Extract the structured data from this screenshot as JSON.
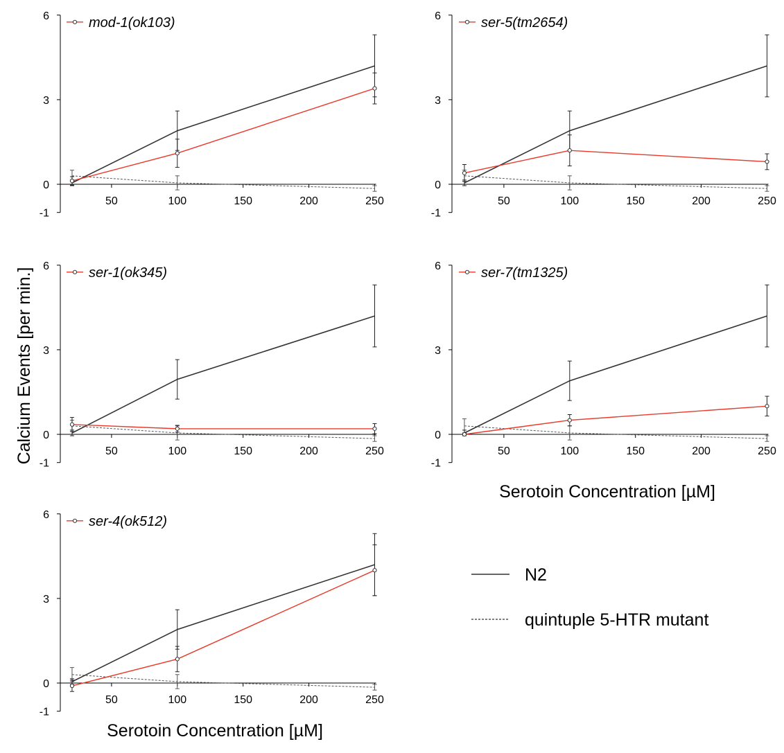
{
  "figure": {
    "ylabel": "Calcium Events [per min.]",
    "xlabel": "Serotoin Concentration [µM]",
    "key": [
      {
        "label": "N2",
        "style": "solid",
        "color": "#333333"
      },
      {
        "label": "quintuple 5-HTR mutant",
        "style": "dotted",
        "color": "#555555"
      }
    ]
  },
  "colors": {
    "n2": "#333333",
    "mutant": "#e8392a",
    "quintuple": "#555555"
  },
  "chart_data": [
    {
      "type": "line",
      "title": "",
      "legend": "mod-1(ok103)",
      "x": [
        20,
        100,
        250
      ],
      "xticks": [
        50,
        100,
        150,
        200,
        250
      ],
      "yticks": [
        -1,
        0,
        3,
        6
      ],
      "xlim": [
        0,
        250
      ],
      "ylim": [
        -1,
        6
      ],
      "series": [
        {
          "name": "N2",
          "values": [
            0.05,
            1.9,
            4.2
          ],
          "error": [
            0.1,
            0.7,
            1.1
          ]
        },
        {
          "name": "mod-1(ok103)",
          "values": [
            0.12,
            1.1,
            3.4
          ],
          "error": [
            0.15,
            0.5,
            0.55
          ]
        },
        {
          "name": "quintuple 5-HTR mutant",
          "values": [
            0.3,
            0.05,
            -0.15
          ],
          "error": [
            0.2,
            0.25,
            0.1
          ]
        }
      ]
    },
    {
      "type": "line",
      "title": "",
      "legend": "ser-5(tm2654)",
      "x": [
        20,
        100,
        250
      ],
      "xticks": [
        50,
        100,
        150,
        200,
        250
      ],
      "yticks": [
        -1,
        0,
        3,
        6
      ],
      "xlim": [
        0,
        250
      ],
      "ylim": [
        -1,
        6
      ],
      "series": [
        {
          "name": "N2",
          "values": [
            0.05,
            1.9,
            4.2
          ],
          "error": [
            0.1,
            0.7,
            1.1
          ]
        },
        {
          "name": "ser-5(tm2654)",
          "values": [
            0.4,
            1.2,
            0.8
          ],
          "error": [
            0.3,
            0.55,
            0.28
          ]
        },
        {
          "name": "quintuple 5-HTR mutant",
          "values": [
            0.3,
            0.05,
            -0.15
          ],
          "error": [
            0.2,
            0.25,
            0.1
          ]
        }
      ]
    },
    {
      "type": "line",
      "title": "",
      "legend": "ser-1(ok345)",
      "x": [
        20,
        100,
        250
      ],
      "xticks": [
        50,
        100,
        150,
        200,
        250
      ],
      "yticks": [
        -1,
        0,
        3,
        6
      ],
      "xlim": [
        0,
        250
      ],
      "ylim": [
        -1,
        6
      ],
      "series": [
        {
          "name": "N2",
          "values": [
            0.05,
            1.95,
            4.2
          ],
          "error": [
            0.1,
            0.7,
            1.1
          ]
        },
        {
          "name": "ser-1(ok345)",
          "values": [
            0.35,
            0.2,
            0.2
          ],
          "error": [
            0.25,
            0.12,
            0.18
          ]
        },
        {
          "name": "quintuple 5-HTR mutant",
          "values": [
            0.3,
            0.05,
            -0.15
          ],
          "error": [
            0.2,
            0.25,
            0.1
          ]
        }
      ]
    },
    {
      "type": "line",
      "title": "",
      "legend": "ser-7(tm1325)",
      "x": [
        20,
        100,
        250
      ],
      "xticks": [
        50,
        100,
        150,
        200,
        250
      ],
      "yticks": [
        -1,
        0,
        3,
        6
      ],
      "xlim": [
        0,
        250
      ],
      "ylim": [
        -1,
        6
      ],
      "series": [
        {
          "name": "N2",
          "values": [
            0.05,
            1.9,
            4.2
          ],
          "error": [
            0.1,
            0.7,
            1.1
          ]
        },
        {
          "name": "ser-7(tm1325)",
          "values": [
            0.0,
            0.5,
            1.0
          ],
          "error": [
            0.05,
            0.2,
            0.35
          ]
        },
        {
          "name": "quintuple 5-HTR mutant",
          "values": [
            0.3,
            0.05,
            -0.15
          ],
          "error": [
            0.25,
            0.25,
            0.1
          ]
        }
      ]
    },
    {
      "type": "line",
      "title": "",
      "legend": "ser-4(ok512)",
      "x": [
        20,
        100,
        250
      ],
      "xticks": [
        50,
        100,
        150,
        200,
        250
      ],
      "yticks": [
        -1,
        0,
        3,
        6
      ],
      "xlim": [
        0,
        250
      ],
      "ylim": [
        -1,
        6
      ],
      "series": [
        {
          "name": "N2",
          "values": [
            0.05,
            1.9,
            4.2
          ],
          "error": [
            0.1,
            0.7,
            1.1
          ]
        },
        {
          "name": "ser-4(ok512)",
          "values": [
            -0.1,
            0.85,
            4.0
          ],
          "error": [
            0.2,
            0.45,
            0.9
          ]
        },
        {
          "name": "quintuple 5-HTR mutant",
          "values": [
            0.3,
            0.05,
            -0.15
          ],
          "error": [
            0.25,
            0.25,
            0.1
          ]
        }
      ]
    }
  ]
}
